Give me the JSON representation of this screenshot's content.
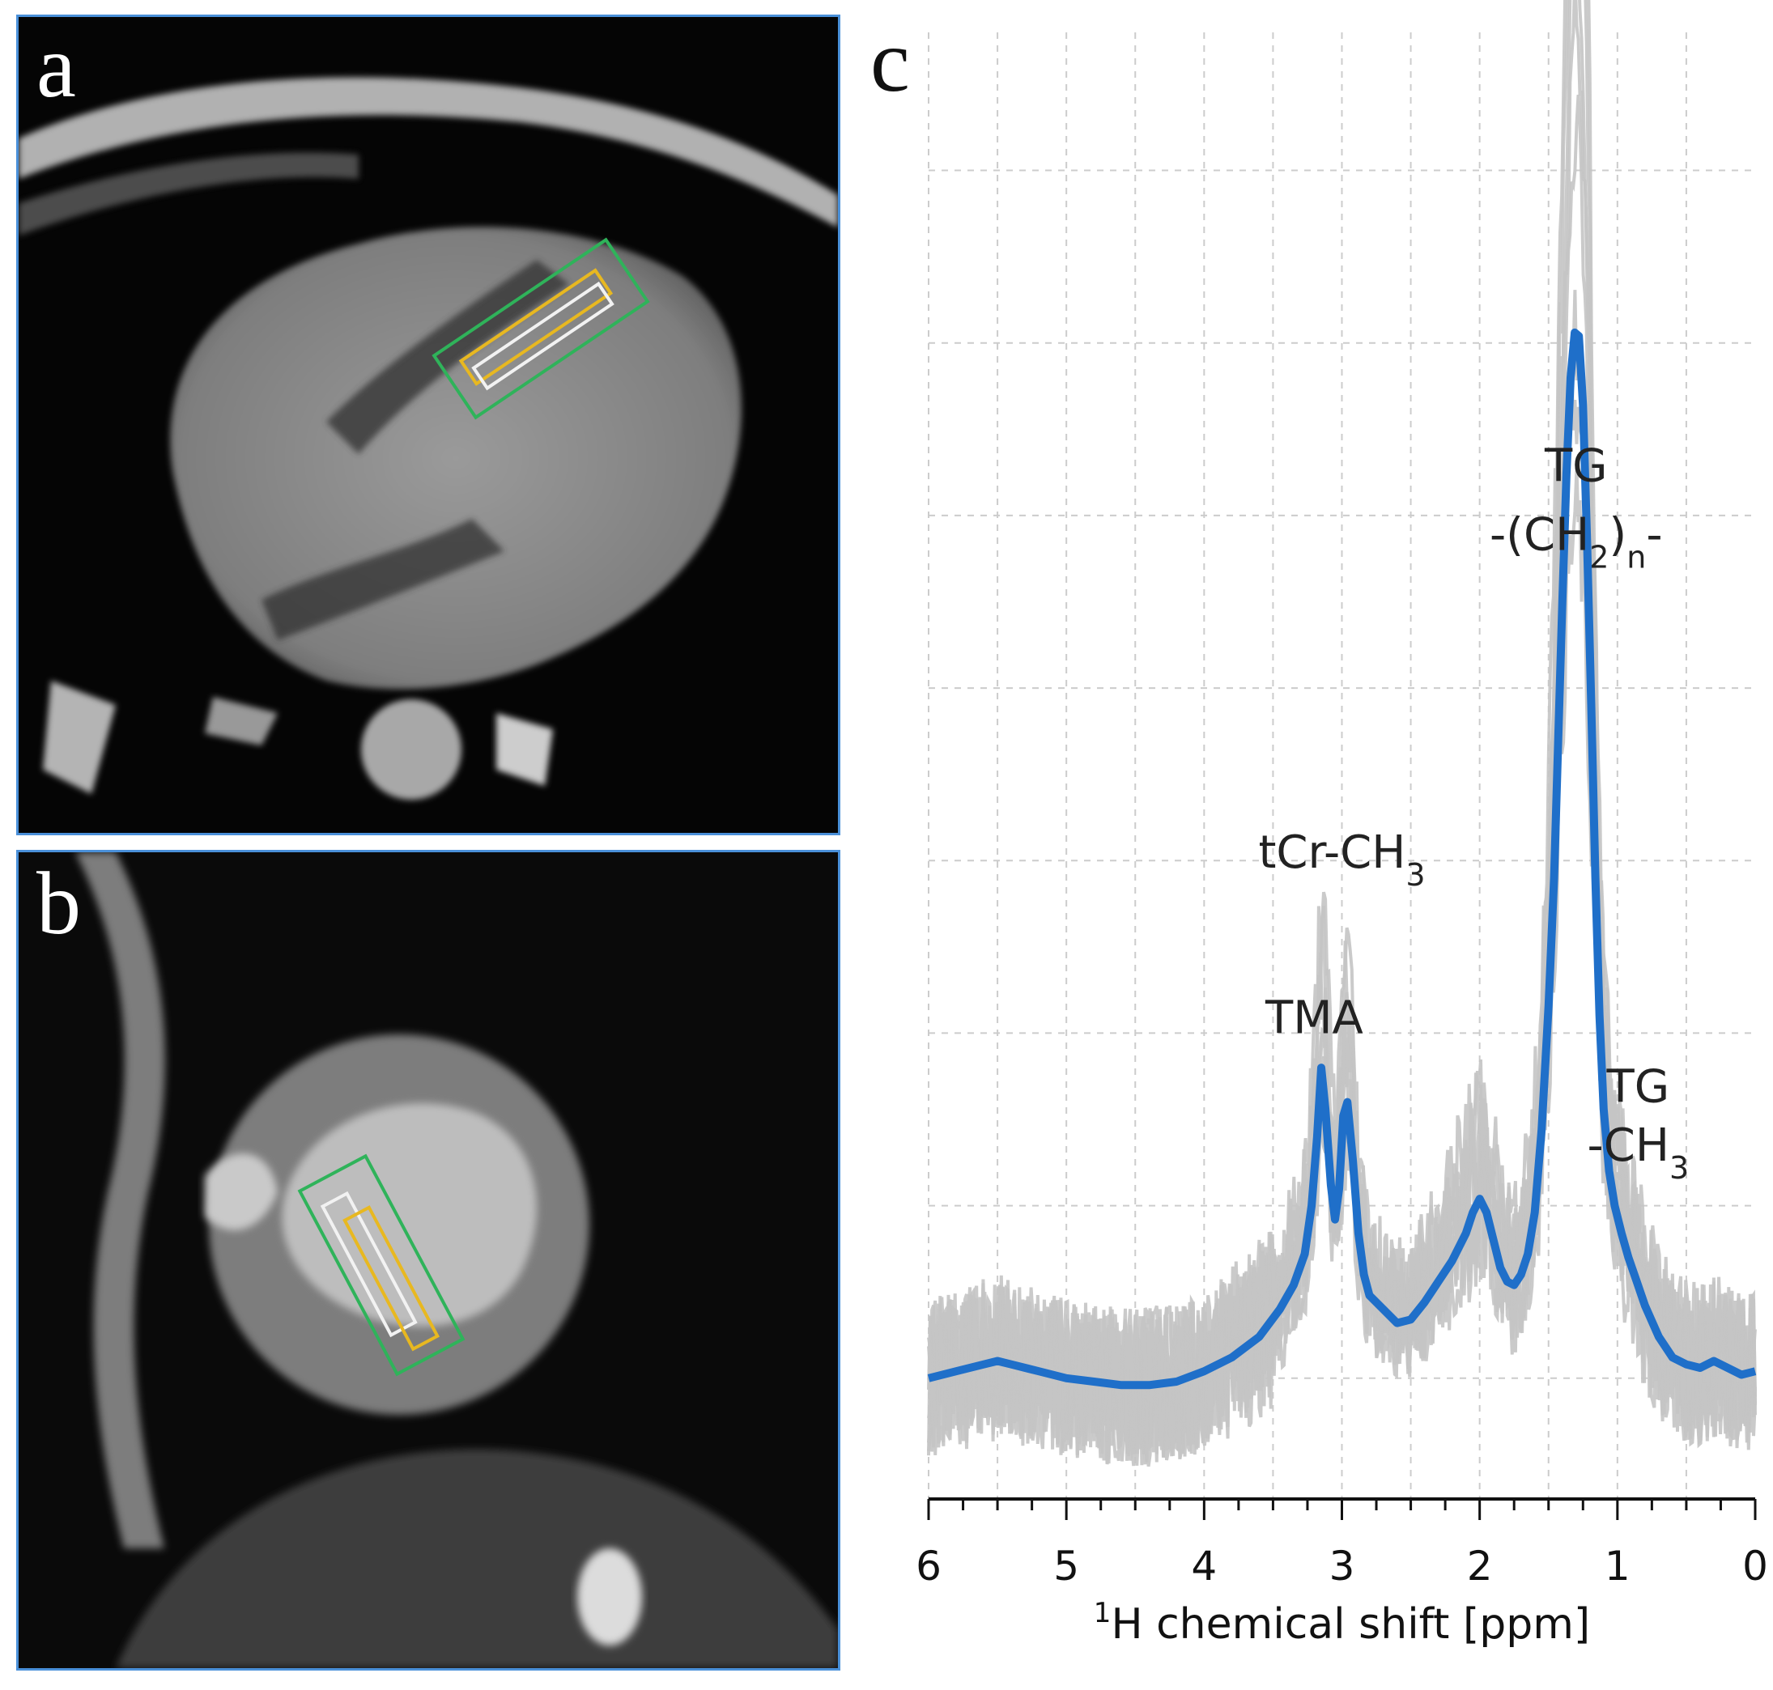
{
  "figure": {
    "panels": [
      {
        "letter": "a",
        "view": "four-chamber cine MRI"
      },
      {
        "letter": "b",
        "view": "short-axis cine MRI"
      },
      {
        "letter": "c"
      }
    ],
    "voxel_colors": {
      "green": "#2fb35a",
      "yellow": "#e8b820",
      "white": "#f2f2f2"
    },
    "trace_colors": {
      "mean": "#1f6fc9",
      "individual": "#c4c4c4"
    }
  },
  "chart_data": {
    "type": "line",
    "x_reversed": true,
    "xlim": [
      6,
      0
    ],
    "ylim": [
      -0.35,
      3.9
    ],
    "x_ticks": [
      6,
      5,
      4,
      3,
      2,
      1,
      0
    ],
    "xlabel_sup": "1",
    "xlabel_main": "H chemical shift [ppm]",
    "ylabel": "",
    "grid": true,
    "legend": "none",
    "annotations": [
      {
        "id": "tma",
        "text": "TMA",
        "x": 3.2,
        "y": 1.0
      },
      {
        "id": "tcr",
        "base": "tCr-CH",
        "sub": "3",
        "x": 3.0,
        "y": 1.48
      },
      {
        "id": "tg-ch2-top",
        "text": "TG",
        "x": 1.3,
        "y": 2.6
      },
      {
        "id": "tg-ch2-bottom",
        "base": "-(CH",
        "sub": "2",
        "mid": ")",
        "sub2": "n",
        "tail": "-",
        "x": 1.3,
        "y": 2.4
      },
      {
        "id": "tg-ch3-top",
        "text": "TG",
        "x": 0.85,
        "y": 0.8
      },
      {
        "id": "tg-ch3-bottom",
        "base": "-CH",
        "sub": "3",
        "x": 0.85,
        "y": 0.63
      }
    ],
    "series": [
      {
        "role": "mean",
        "x": [
          6.0,
          5.8,
          5.6,
          5.5,
          5.4,
          5.2,
          5.0,
          4.8,
          4.6,
          4.4,
          4.2,
          4.0,
          3.8,
          3.6,
          3.45,
          3.35,
          3.27,
          3.22,
          3.18,
          3.15,
          3.12,
          3.08,
          3.05,
          3.02,
          2.99,
          2.96,
          2.92,
          2.88,
          2.84,
          2.8,
          2.7,
          2.6,
          2.5,
          2.4,
          2.3,
          2.2,
          2.1,
          2.05,
          2.0,
          1.95,
          1.9,
          1.85,
          1.8,
          1.75,
          1.7,
          1.65,
          1.6,
          1.55,
          1.5,
          1.46,
          1.43,
          1.4,
          1.37,
          1.34,
          1.31,
          1.28,
          1.25,
          1.22,
          1.19,
          1.16,
          1.13,
          1.1,
          1.06,
          1.02,
          0.97,
          0.92,
          0.86,
          0.8,
          0.7,
          0.6,
          0.5,
          0.4,
          0.3,
          0.2,
          0.1,
          0.0
        ],
        "y": [
          0.0,
          0.02,
          0.04,
          0.05,
          0.04,
          0.02,
          0.0,
          -0.01,
          -0.02,
          -0.02,
          -0.01,
          0.02,
          0.06,
          0.12,
          0.2,
          0.27,
          0.36,
          0.5,
          0.7,
          0.9,
          0.78,
          0.56,
          0.46,
          0.55,
          0.76,
          0.8,
          0.63,
          0.42,
          0.3,
          0.24,
          0.2,
          0.16,
          0.17,
          0.22,
          0.28,
          0.34,
          0.42,
          0.48,
          0.52,
          0.48,
          0.4,
          0.32,
          0.28,
          0.27,
          0.3,
          0.36,
          0.48,
          0.72,
          1.08,
          1.45,
          1.85,
          2.25,
          2.62,
          2.9,
          3.03,
          3.02,
          2.82,
          2.42,
          1.95,
          1.45,
          1.05,
          0.78,
          0.6,
          0.5,
          0.42,
          0.35,
          0.28,
          0.21,
          0.12,
          0.06,
          0.04,
          0.03,
          0.05,
          0.03,
          0.01,
          0.02
        ]
      }
    ]
  }
}
